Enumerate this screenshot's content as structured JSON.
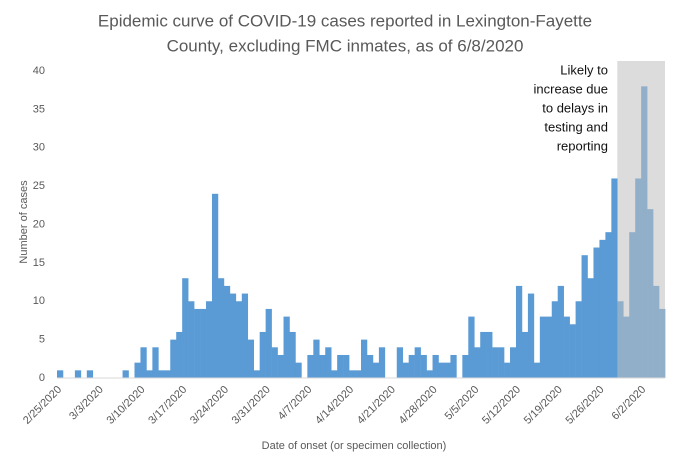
{
  "chart_data": {
    "type": "bar",
    "title": [
      "Epidemic curve of COVID-19 cases reported in Lexington-Fayette",
      "County, excluding FMC inmates, as of 6/8/2020"
    ],
    "x_label": "Date of onset (or specimen collection)",
    "y_label": "Number of cases",
    "annotation": [
      "Likely to",
      "increase due",
      "to delays in",
      "testing and",
      "reporting"
    ],
    "categories": [
      "2/25/2020",
      null,
      null,
      null,
      null,
      null,
      null,
      "3/3/2020",
      null,
      null,
      null,
      null,
      null,
      null,
      "3/10/2020",
      null,
      null,
      null,
      null,
      null,
      null,
      "3/17/2020",
      null,
      null,
      null,
      null,
      null,
      null,
      "3/24/2020",
      null,
      null,
      null,
      null,
      null,
      null,
      "3/31/2020",
      null,
      null,
      null,
      null,
      null,
      null,
      "4/7/2020",
      null,
      null,
      null,
      null,
      null,
      null,
      "4/14/2020",
      null,
      null,
      null,
      null,
      null,
      null,
      "4/21/2020",
      null,
      null,
      null,
      null,
      null,
      null,
      "4/28/2020",
      null,
      null,
      null,
      null,
      null,
      null,
      "5/5/2020",
      null,
      null,
      null,
      null,
      null,
      null,
      "5/12/2020",
      null,
      null,
      null,
      null,
      null,
      null,
      "5/19/2020",
      null,
      null,
      null,
      null,
      null,
      null,
      "5/26/2020",
      null,
      null,
      null,
      null,
      null,
      null,
      "6/2/2020",
      null,
      null,
      null
    ],
    "values": [
      1,
      0,
      0,
      1,
      0,
      1,
      0,
      0,
      0,
      0,
      0,
      1,
      0,
      2,
      4,
      1,
      4,
      1,
      1,
      5,
      6,
      13,
      10,
      9,
      9,
      10,
      24,
      13,
      12,
      11,
      10,
      11,
      5,
      1,
      6,
      9,
      4,
      3,
      8,
      6,
      2,
      0,
      3,
      5,
      3,
      4,
      1,
      3,
      3,
      1,
      1,
      5,
      3,
      2,
      4,
      0,
      0,
      4,
      2,
      3,
      4,
      3,
      1,
      3,
      2,
      2,
      3,
      0,
      3,
      8,
      4,
      6,
      6,
      4,
      4,
      2,
      4,
      12,
      6,
      11,
      2,
      8,
      8,
      10,
      12,
      8,
      7,
      10,
      16,
      13,
      17,
      18,
      19,
      26,
      10,
      8,
      19,
      26,
      38,
      22,
      12,
      9
    ],
    "color": "#5b9bd5",
    "highlight": {
      "start": 94,
      "end": 101,
      "color": "#bfbfbf"
    },
    "ylim": [
      0,
      40
    ],
    "yticks": [
      0,
      5,
      10,
      15,
      20,
      25,
      30,
      35,
      40
    ]
  }
}
